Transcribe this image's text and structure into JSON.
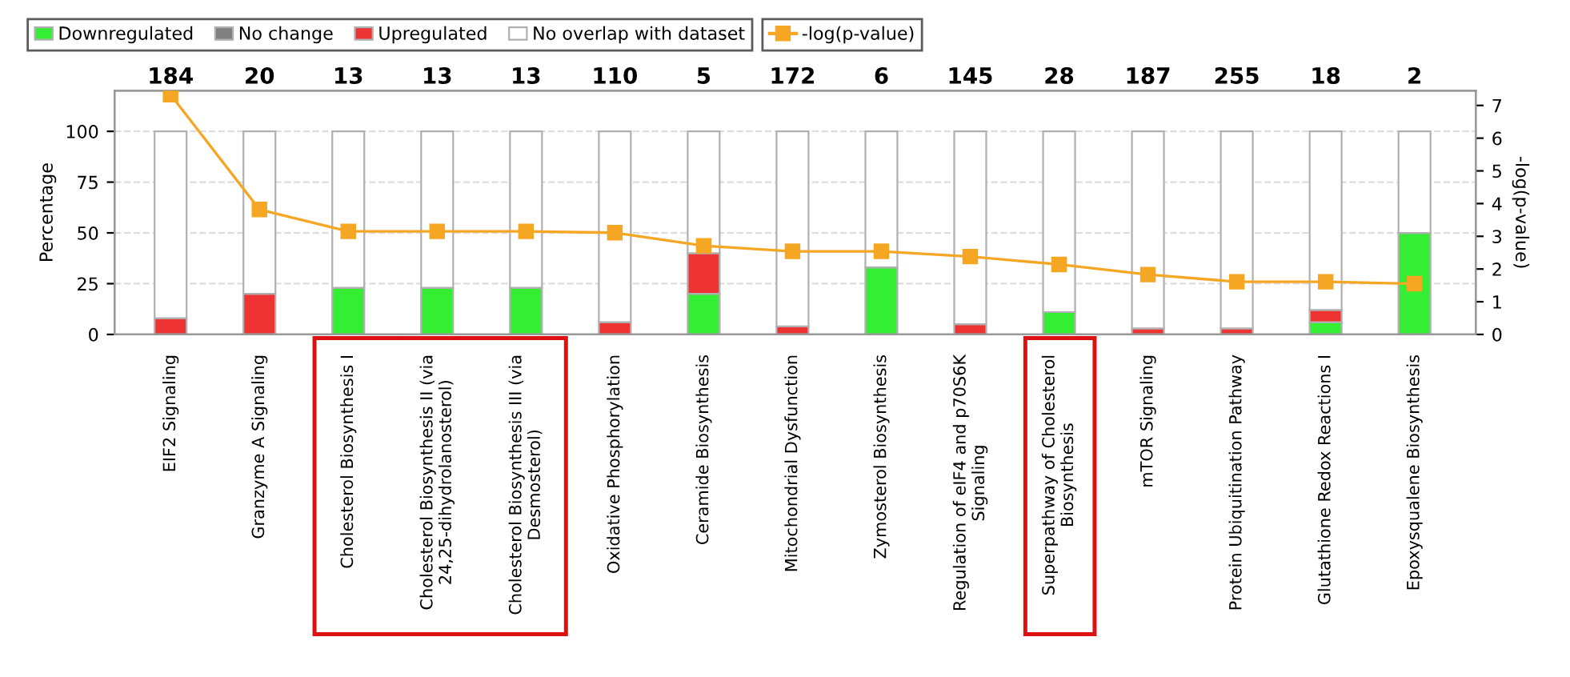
{
  "chart_data": {
    "type": "bar",
    "stacked": true,
    "ylabel": "Percentage",
    "y2label": "-log(p-value)",
    "categories": [
      "EIF2 Signaling",
      "Granzyme A Signaling",
      "Cholesterol Biosynthesis I",
      "Cholesterol Biosynthesis II (via\n24,25-dihydrolanosterol)",
      "Cholesterol Biosynthesis III (via\nDesmosterol)",
      "Oxidative Phosphorylation",
      "Ceramide Biosynthesis",
      "Mitochondrial Dysfunction",
      "Zymosterol Biosynthesis",
      "Regulation of eIF4 and p70S6K\nSignaling",
      "Superpathway of Cholesterol\nBiosynthesis",
      "mTOR Signaling",
      "Protein Ubiquitination Pathway",
      "Glutathione Redox Reactions I",
      "Epoxysqualene Biosynthesis"
    ],
    "series": [
      {
        "name": "Downregulated",
        "color": "#33ee33",
        "values": [
          0,
          0,
          23,
          23,
          23,
          0,
          20,
          0,
          33,
          0,
          11,
          0,
          0,
          6,
          50
        ]
      },
      {
        "name": "No change",
        "color": "#808080",
        "values": [
          0,
          0,
          0,
          0,
          0,
          0,
          0,
          0,
          0,
          0,
          0,
          0,
          0,
          0,
          0
        ]
      },
      {
        "name": "Upregulated",
        "color": "#ee3333",
        "values": [
          8,
          20,
          0,
          0,
          0,
          6,
          20,
          4,
          0,
          5,
          0,
          3,
          3,
          6,
          0
        ]
      },
      {
        "name": "No overlap with dataset",
        "color": "#ffffff",
        "values": [
          92,
          80,
          77,
          77,
          77,
          94,
          60,
          96,
          67,
          95,
          89,
          97,
          97,
          88,
          50
        ]
      },
      {
        "name": "-log(p-value)",
        "type": "line",
        "axis": "y2",
        "color": "#f5a623",
        "marker": "square",
        "values": [
          7.33,
          3.82,
          3.15,
          3.15,
          3.15,
          3.11,
          2.71,
          2.54,
          2.54,
          2.38,
          2.14,
          1.83,
          1.61,
          1.61,
          1.55
        ]
      }
    ],
    "annotations": [
      "184",
      "20",
      "13",
      "13",
      "13",
      "110",
      "5",
      "172",
      "6",
      "145",
      "28",
      "187",
      "255",
      "18",
      "2"
    ],
    "ylim": [
      0,
      120
    ],
    "yticks": [
      0,
      25,
      50,
      75,
      100
    ],
    "y2lim": [
      0,
      7.45
    ],
    "y2ticks": [
      0,
      1,
      2,
      3,
      4,
      5,
      6,
      7
    ],
    "grid": "y",
    "legend": "top"
  }
}
